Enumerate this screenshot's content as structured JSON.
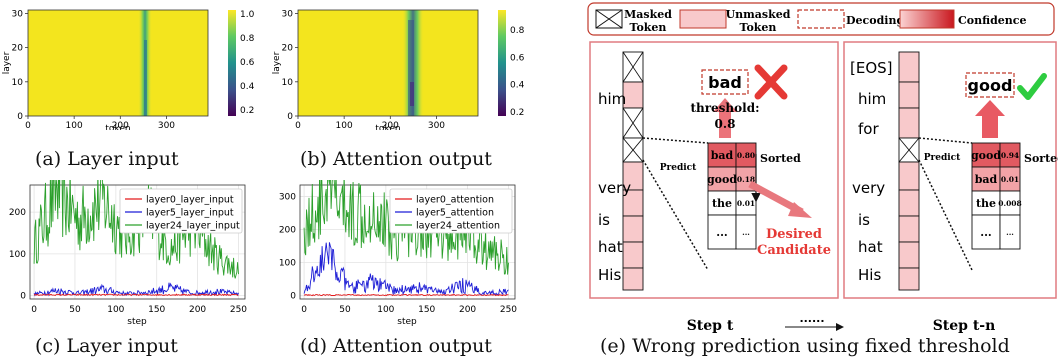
{
  "captions": {
    "a": "(a) Layer input",
    "b": "(b) Attention output",
    "c": "(c) Layer input",
    "d": "(d) Attention output",
    "e": "(e) Wrong prediction using fixed threshold"
  },
  "chart_data": [
    {
      "type": "heatmap",
      "id": "a",
      "xlabel": "token",
      "ylabel": "layer",
      "x_ticks": [
        "0",
        "100",
        "200",
        "300"
      ],
      "y_ticks": [
        "0",
        "10",
        "20",
        "30"
      ],
      "colorbar_ticks": [
        "1.0",
        "0.8",
        "0.6",
        "0.4",
        "0.2"
      ],
      "xlim": [
        0,
        390
      ],
      "ylim": [
        0,
        31
      ],
      "colormap": [
        "#440154",
        "#3b528b",
        "#21918c",
        "#5ec962",
        "#fde725"
      ]
    },
    {
      "type": "heatmap",
      "id": "b",
      "xlabel": "token",
      "ylabel": "layer",
      "x_ticks": [
        "0",
        "100",
        "200",
        "300"
      ],
      "y_ticks": [
        "0",
        "10",
        "20",
        "30"
      ],
      "colorbar_ticks": [
        "0.8",
        "0.6",
        "0.4",
        "0.2"
      ],
      "xlim": [
        0,
        390
      ],
      "ylim": [
        0,
        31
      ],
      "colormap": [
        "#440154",
        "#3b528b",
        "#21918c",
        "#5ec962",
        "#fde725"
      ]
    },
    {
      "type": "line",
      "id": "c",
      "xlabel": "step",
      "ylabel": "",
      "x_ticks": [
        "0",
        "50",
        "100",
        "150",
        "200",
        "250"
      ],
      "y_ticks": [
        "0",
        "100",
        "200"
      ],
      "xlim": [
        -5,
        258
      ],
      "ylim": [
        -8,
        265
      ],
      "grid": true,
      "legend": "top-right",
      "series": [
        {
          "name": "layer0_layer_input",
          "color": "#e41a1c",
          "values": [
            2,
            2,
            2,
            2,
            2,
            2,
            2,
            2,
            2,
            2
          ]
        },
        {
          "name": "layer5_layer_input",
          "color": "#1f1fd6",
          "values": [
            4,
            12,
            6,
            15,
            5,
            8,
            18,
            6,
            10,
            5
          ]
        },
        {
          "name": "layer24_layer_input",
          "color": "#2ca02c",
          "values": [
            120,
            255,
            180,
            230,
            140,
            200,
            110,
            170,
            95,
            60
          ]
        }
      ]
    },
    {
      "type": "line",
      "id": "d",
      "xlabel": "step",
      "ylabel": "",
      "x_ticks": [
        "0",
        "50",
        "100",
        "150",
        "200",
        "250"
      ],
      "y_ticks": [
        "0",
        "100",
        "200",
        "300"
      ],
      "xlim": [
        -5,
        258
      ],
      "ylim": [
        -10,
        335
      ],
      "grid": true,
      "legend": "top-right",
      "series": [
        {
          "name": "layer0_attention",
          "color": "#e41a1c",
          "values": [
            2,
            2,
            2,
            2,
            2,
            2,
            2,
            2,
            2,
            2
          ]
        },
        {
          "name": "layer5_attention",
          "color": "#1f1fd6",
          "values": [
            5,
            130,
            20,
            40,
            15,
            25,
            10,
            30,
            8,
            12
          ]
        },
        {
          "name": "layer24_attention",
          "color": "#2ca02c",
          "values": [
            200,
            310,
            250,
            270,
            180,
            220,
            160,
            200,
            140,
            110
          ]
        }
      ]
    }
  ],
  "diagram": {
    "legend": {
      "masked": "Masked Token",
      "masked_l1": "Masked",
      "masked_l2": "Token",
      "unmasked_l1": "Unmasked",
      "unmasked_l2": "Token",
      "decoding": "Decoding",
      "confidence": "Confidence"
    },
    "left": {
      "tokens": [
        "him",
        "very",
        "is",
        "hat",
        "His"
      ],
      "predict": "Predict",
      "sorted": "Sorted",
      "chosen": "bad",
      "threshold_l1": "threshold:",
      "threshold_l2": "0.8",
      "candidates": [
        {
          "token": "bad",
          "conf": "0.80"
        },
        {
          "token": "good",
          "conf": "0.18"
        },
        {
          "token": "the",
          "conf": "0.01"
        },
        {
          "token": "...",
          "conf": "..."
        }
      ],
      "desired_l1": "Desired",
      "desired_l2": "Candidate",
      "step": "Step t"
    },
    "right": {
      "tokens": [
        "[EOS]",
        "him",
        "for",
        "very",
        "is",
        "hat",
        "His"
      ],
      "predict": "Predict",
      "sorted": "Sorted",
      "chosen": "good",
      "candidates": [
        {
          "token": "good",
          "conf": "0.94"
        },
        {
          "token": "bad",
          "conf": "0.01"
        },
        {
          "token": "the",
          "conf": "0.008"
        },
        {
          "token": "...",
          "conf": "..."
        }
      ],
      "step": "Step t-n"
    },
    "ellipsis": "......"
  }
}
